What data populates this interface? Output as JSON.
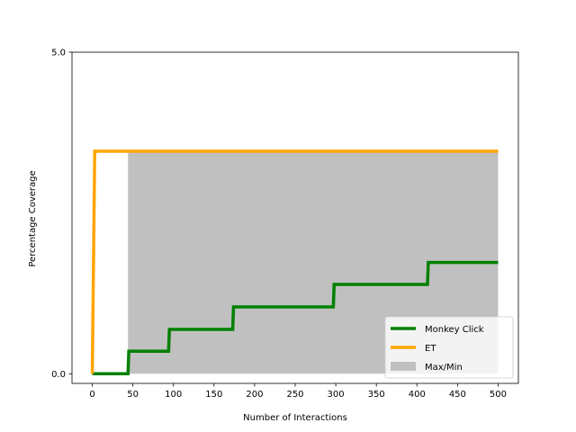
{
  "chart_data": {
    "type": "line",
    "title": "",
    "xlabel": "Number of Interactions",
    "ylabel": "Percentage Coverage",
    "xlim": [
      -25,
      525
    ],
    "ylim": [
      -0.15,
      5.0
    ],
    "xticks": [
      0,
      50,
      100,
      150,
      200,
      250,
      300,
      350,
      400,
      450,
      500
    ],
    "yticks": [
      0.0,
      5.0
    ],
    "ytick_labels": [
      "0.0",
      "5.0"
    ],
    "grid": false,
    "legend_position": "lower-right",
    "series": [
      {
        "name": "Monkey Click",
        "color": "#008000",
        "x": [
          0,
          44,
          45,
          94,
          95,
          173,
          174,
          297,
          298,
          413,
          414,
          500
        ],
        "y": [
          0.0,
          0.0,
          0.35,
          0.35,
          0.69,
          0.69,
          1.04,
          1.04,
          1.39,
          1.39,
          1.73,
          1.73
        ]
      },
      {
        "name": "ET",
        "color": "#ffa500",
        "x": [
          0,
          3,
          500
        ],
        "y": [
          0.0,
          3.46,
          3.46
        ]
      }
    ],
    "band": {
      "name": "Max/Min",
      "color": "#c0c0c0",
      "x": [
        44,
        500
      ],
      "lower": [
        0.0,
        0.0
      ],
      "upper": [
        3.46,
        3.46
      ]
    }
  }
}
